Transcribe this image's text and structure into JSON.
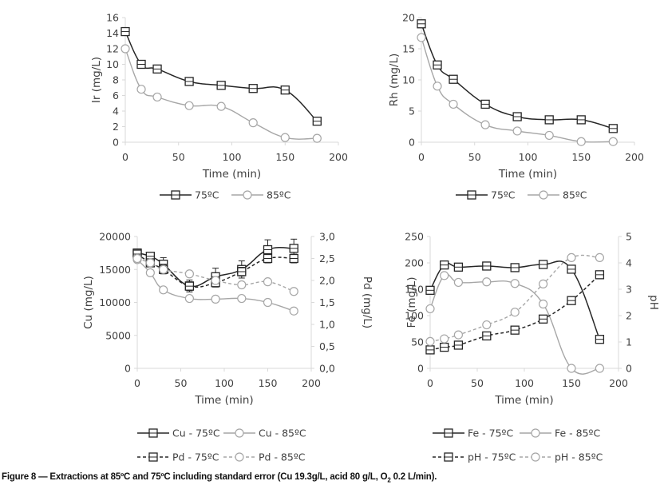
{
  "caption": {
    "prefix": "Figure 8 — Extractions at 85ºC and 75ºC including standard error (Cu 19.3g/L, acid 80 g/L, O",
    "sub": "2",
    "suffix": " 0.2 L/min)."
  },
  "colors": {
    "series_75": "#262626",
    "series_85": "#a6a6a6",
    "axis": "#d9d9d9"
  },
  "chart_data": [
    {
      "id": "ir",
      "type": "line",
      "title": "",
      "xlabel": "Time (min)",
      "ylabel": "Ir (mg/L)",
      "xlim": [
        0,
        200
      ],
      "xticks": [
        0,
        50,
        100,
        150,
        200
      ],
      "ylim": [
        0,
        16
      ],
      "yticks": [
        0,
        2,
        4,
        6,
        8,
        10,
        12,
        14,
        16
      ],
      "tick_labels_y": [
        "0",
        "2",
        "4",
        "6",
        "8",
        "10",
        "12",
        "14",
        "16"
      ],
      "tick_labels_x": [
        "0",
        "50",
        "100",
        "150",
        "200"
      ],
      "grid": false,
      "legend_position": "bottom",
      "x": [
        0,
        15,
        30,
        60,
        90,
        120,
        150,
        180
      ],
      "series": [
        {
          "name": "75ºC",
          "values": [
            14.2,
            10.0,
            9.4,
            7.8,
            7.3,
            6.9,
            6.7,
            2.7
          ],
          "marker": "square",
          "dash": false,
          "shade": "dark",
          "axis": "left"
        },
        {
          "name": "85ºC",
          "values": [
            12.0,
            6.8,
            5.8,
            4.7,
            4.6,
            2.5,
            0.6,
            0.5
          ],
          "marker": "circle",
          "dash": false,
          "shade": "light",
          "axis": "left"
        }
      ]
    },
    {
      "id": "rh",
      "type": "line",
      "title": "",
      "xlabel": "Time (min)",
      "ylabel": "Rh (mg/L)",
      "xlim": [
        0,
        200
      ],
      "xticks": [
        0,
        50,
        100,
        150,
        200
      ],
      "ylim": [
        0,
        20
      ],
      "yticks": [
        0,
        5,
        10,
        15,
        20
      ],
      "tick_labels_y": [
        "0",
        "5",
        "10",
        "15",
        "20"
      ],
      "tick_labels_x": [
        "0",
        "50",
        "100",
        "150",
        "200"
      ],
      "grid": false,
      "legend_position": "bottom",
      "x": [
        0,
        15,
        30,
        60,
        90,
        120,
        150,
        180
      ],
      "series": [
        {
          "name": "75ºC",
          "values": [
            19.0,
            12.4,
            10.1,
            6.1,
            4.1,
            3.6,
            3.6,
            2.2
          ],
          "marker": "square",
          "dash": false,
          "shade": "dark",
          "axis": "left"
        },
        {
          "name": "85ºC",
          "values": [
            16.8,
            9.0,
            6.1,
            2.8,
            1.8,
            1.1,
            0.1,
            0.1
          ],
          "marker": "circle",
          "dash": false,
          "shade": "light",
          "axis": "left"
        }
      ]
    },
    {
      "id": "cupd",
      "type": "line",
      "title": "",
      "xlabel": "Time (min)",
      "ylabel": "Cu (mg/L)",
      "y2label": "Pd (mg/L)",
      "xlim": [
        0,
        200
      ],
      "xticks": [
        0,
        50,
        100,
        150,
        200
      ],
      "ylim": [
        0,
        20000
      ],
      "yticks": [
        0,
        5000,
        10000,
        15000,
        20000
      ],
      "y2lim": [
        0,
        3
      ],
      "y2ticks": [
        0,
        0.5,
        1,
        1.5,
        2,
        2.5,
        3
      ],
      "tick_labels_y": [
        "0",
        "5000",
        "10000",
        "15000",
        "20000"
      ],
      "tick_labels_y2": [
        "0,0",
        "0,5",
        "1,0",
        "1,5",
        "2,0",
        "2,5",
        "3,0"
      ],
      "tick_labels_x": [
        "0",
        "50",
        "100",
        "150",
        "200"
      ],
      "grid": false,
      "legend_position": "bottom",
      "x": [
        0,
        15,
        30,
        60,
        90,
        120,
        150,
        180
      ],
      "series": [
        {
          "name": "Cu - 75ºC",
          "values": [
            17500,
            17000,
            15800,
            12500,
            13900,
            15000,
            18000,
            18200
          ],
          "error": [
            500,
            500,
            1000,
            900,
            1300,
            1300,
            1500,
            1400
          ],
          "marker": "square",
          "dash": false,
          "shade": "dark",
          "axis": "left"
        },
        {
          "name": "Cu - 85ºC",
          "values": [
            16500,
            14500,
            11900,
            10600,
            10500,
            10600,
            10000,
            8700
          ],
          "marker": "circle",
          "dash": false,
          "shade": "light",
          "axis": "left"
        },
        {
          "name": "Pd - 75ºC",
          "values": [
            2.6,
            2.4,
            2.25,
            1.87,
            1.95,
            2.2,
            2.5,
            2.5
          ],
          "error": [
            0.05,
            0.07,
            0.1,
            0.1,
            0.1,
            0.1,
            0.1,
            0.1
          ],
          "marker": "square",
          "dash": true,
          "shade": "dark",
          "axis": "right"
        },
        {
          "name": "Pd - 85ºC",
          "values": [
            2.5,
            2.4,
            2.25,
            2.15,
            2.0,
            1.9,
            1.97,
            1.75
          ],
          "marker": "circle",
          "dash": true,
          "shade": "light",
          "axis": "right"
        }
      ]
    },
    {
      "id": "feph",
      "type": "line",
      "title": "",
      "xlabel": "Time (min)",
      "ylabel": "Fe (mg/L)",
      "y2label": "pH",
      "xlim": [
        0,
        200
      ],
      "xticks": [
        0,
        50,
        100,
        150,
        200
      ],
      "ylim": [
        0,
        250
      ],
      "yticks": [
        0,
        50,
        100,
        150,
        200,
        250
      ],
      "y2lim": [
        0,
        5
      ],
      "y2ticks": [
        0,
        1,
        2,
        3,
        4,
        5
      ],
      "tick_labels_y": [
        "0",
        "50",
        "100",
        "150",
        "200",
        "250"
      ],
      "tick_labels_y2": [
        "0",
        "1",
        "2",
        "3",
        "4",
        "5"
      ],
      "tick_labels_x": [
        "0",
        "50",
        "100",
        "150",
        "200"
      ],
      "grid": false,
      "legend_position": "bottom",
      "x": [
        0,
        15,
        30,
        60,
        90,
        120,
        150,
        180
      ],
      "series": [
        {
          "name": "Fe - 75ºC",
          "values": [
            148,
            196,
            192,
            194,
            191,
            197,
            188,
            55
          ],
          "marker": "square",
          "dash": false,
          "shade": "dark",
          "axis": "left"
        },
        {
          "name": "Fe - 85ºC",
          "values": [
            113,
            176,
            163,
            164,
            161,
            122,
            0,
            0
          ],
          "marker": "circle",
          "dash": false,
          "shade": "light",
          "axis": "left"
        },
        {
          "name": "pH - 75ºC",
          "values": [
            0.7,
            0.8,
            0.88,
            1.23,
            1.45,
            1.87,
            2.57,
            3.55
          ],
          "marker": "square",
          "dash": true,
          "shade": "dark",
          "axis": "right"
        },
        {
          "name": "pH - 85ºC",
          "values": [
            1.02,
            1.12,
            1.27,
            1.65,
            2.13,
            3.2,
            4.2,
            4.2
          ],
          "marker": "circle",
          "dash": true,
          "shade": "light",
          "axis": "right"
        }
      ]
    }
  ]
}
